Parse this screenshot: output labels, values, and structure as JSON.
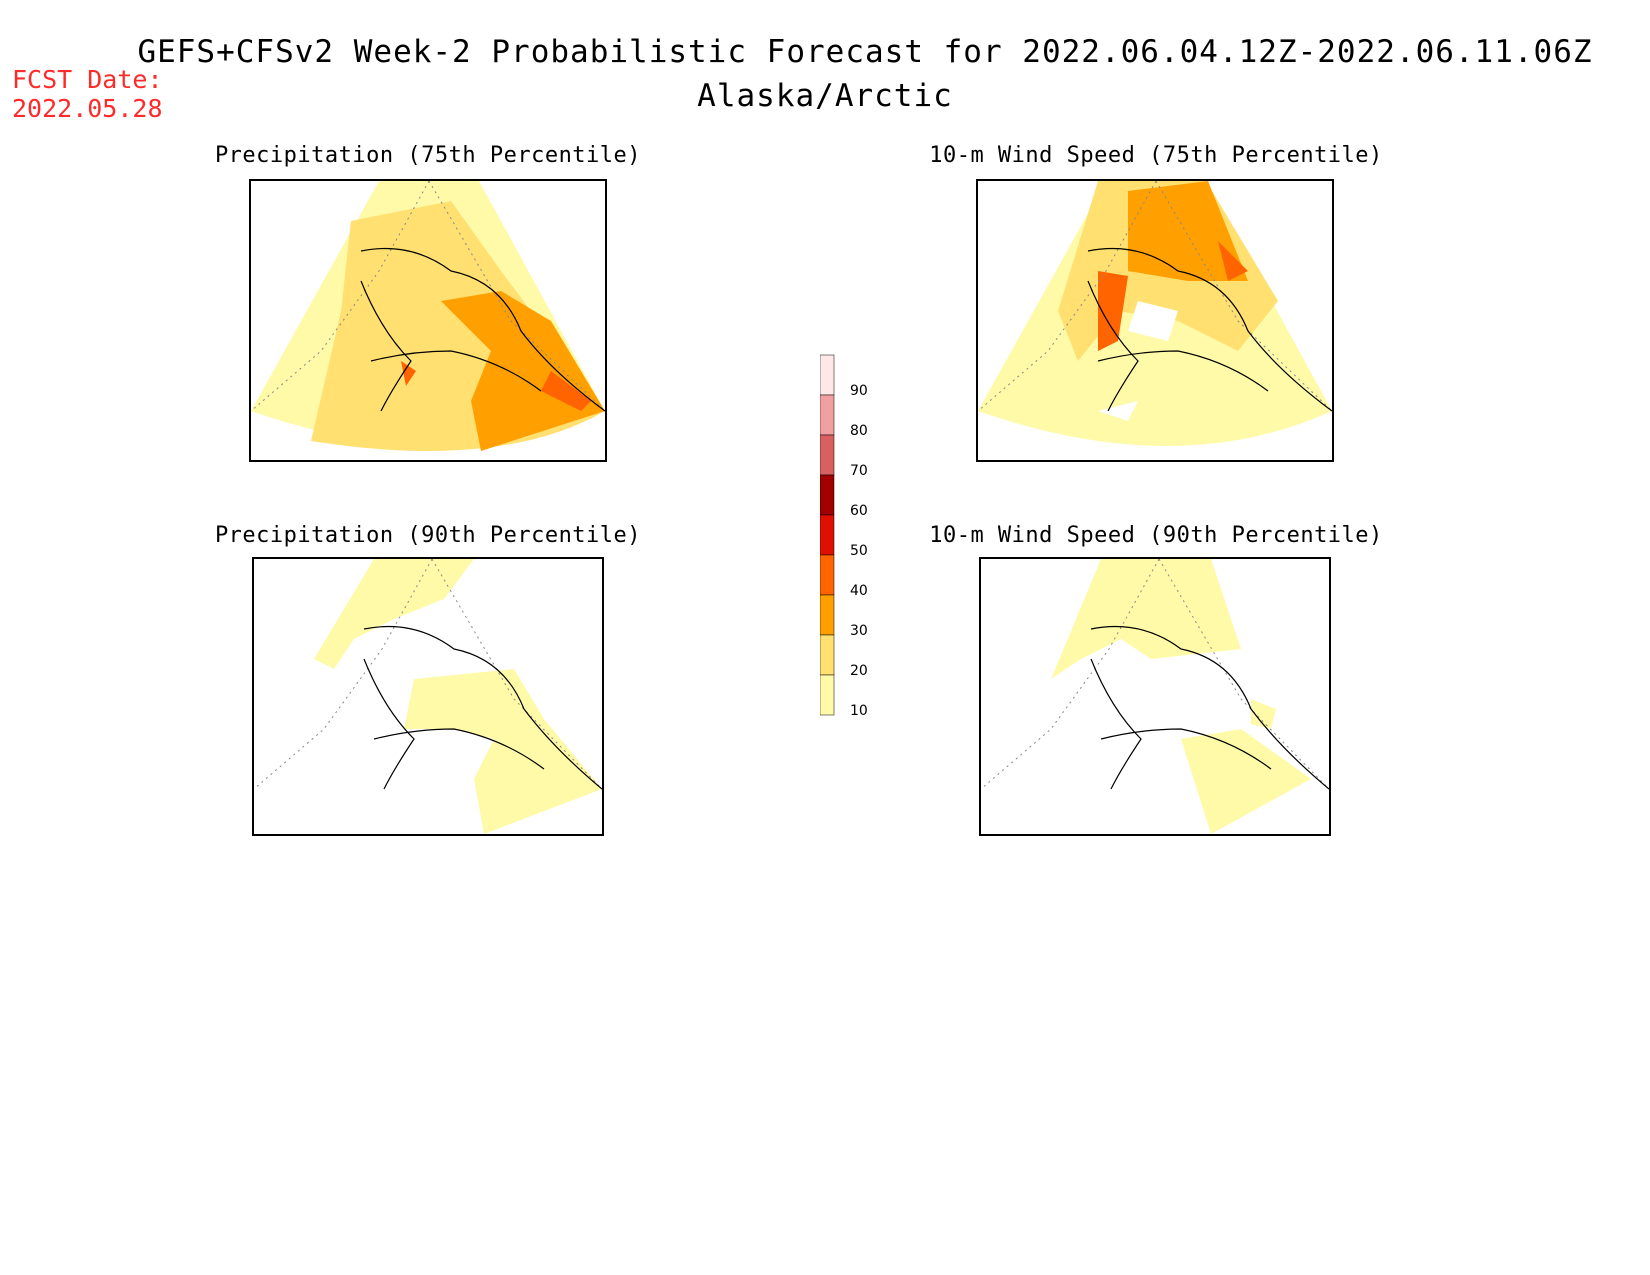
{
  "header": {
    "title": "GEFS+CFSv2 Week-2 Probabilistic Forecast for 2022.06.04.12Z-2022.06.11.06Z",
    "region": "Alaska/Arctic",
    "fcst_label": "FCST Date:",
    "fcst_date": "2022.05.28"
  },
  "panels": [
    {
      "title": "Precipitation (75th Percentile)"
    },
    {
      "title": "10-m Wind Speed (75th Percentile)"
    },
    {
      "title": "Precipitation (90th Percentile)"
    },
    {
      "title": "10-m Wind Speed (90th Percentile)"
    }
  ],
  "legend": {
    "labels": [
      "90",
      "80",
      "70",
      "60",
      "50",
      "40",
      "30",
      "20",
      "10"
    ],
    "colors": [
      "#ffe8e8",
      "#f0a0a0",
      "#d86060",
      "#a00000",
      "#e01000",
      "#ff6400",
      "#ffa000",
      "#ffe070",
      "#fffaa8"
    ]
  }
}
